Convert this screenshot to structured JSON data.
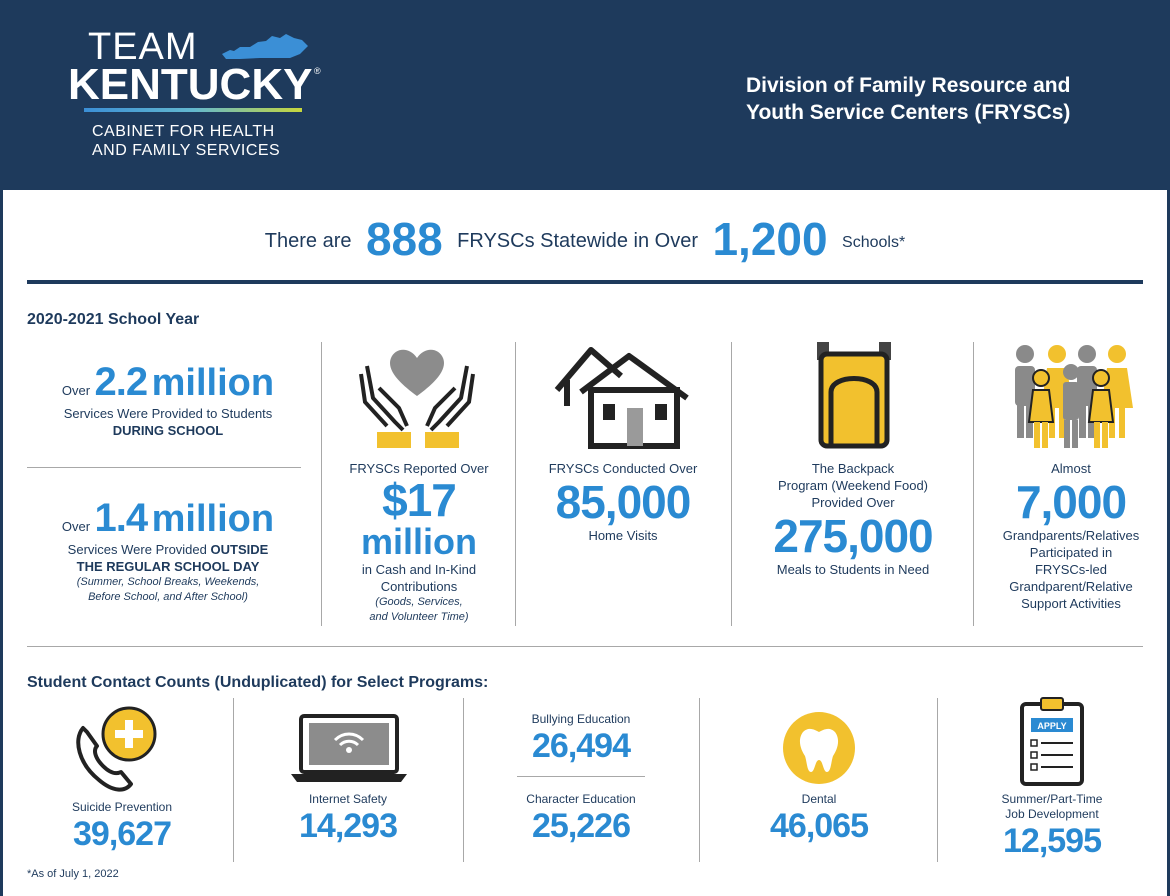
{
  "header": {
    "logo_team": "TEAM",
    "logo_kentucky": "KENTUCKY",
    "logo_reg": "®",
    "cabinet_line1": "CABINET FOR HEALTH",
    "cabinet_line2": "AND FAMILY SERVICES",
    "division_line1": "Division of Family Resource and",
    "division_line2": "Youth Service Centers (FRYSCs)"
  },
  "headline": {
    "pre": "There are",
    "frysc_count": "888",
    "mid": "FRYSCs Statewide in Over",
    "school_count": "1,200",
    "post": "Schools*"
  },
  "school_year": {
    "title": "2020-2021 School Year",
    "during": {
      "over": "Over",
      "value": "2.2",
      "unit": "million",
      "line1": "Services Were Provided to Students",
      "line2": "DURING SCHOOL"
    },
    "outside": {
      "over": "Over",
      "value": "1.4",
      "unit": "million",
      "line1_pre": "Services Were Provided",
      "line1_bold": "OUTSIDE",
      "line2": "THE REGULAR SCHOOL DAY",
      "note1": "(Summer, School Breaks, Weekends,",
      "note2": "Before School, and After School)"
    },
    "contributions": {
      "label": "FRYSCs Reported Over",
      "value": "$17",
      "unit": "million",
      "line1": "in Cash and In-Kind",
      "line2": "Contributions",
      "note1": "(Goods, Services,",
      "note2": "and Volunteer Time)",
      "icon": "heart-hands-icon"
    },
    "home_visits": {
      "label": "FRYSCs Conducted Over",
      "value": "85,000",
      "caption": "Home Visits",
      "icon": "houses-icon"
    },
    "backpack": {
      "line1": "The Backpack",
      "line2": "Program (Weekend Food)",
      "line3": "Provided Over",
      "value": "275,000",
      "caption": "Meals to Students in Need",
      "icon": "backpack-icon"
    },
    "grandparents": {
      "label": "Almost",
      "value": "7,000",
      "line1": "Grandparents/Relatives",
      "line2": "Participated in",
      "line3": "FRYSCs-led",
      "line4": "Grandparent/Relative",
      "line5": "Support Activities",
      "icon": "family-icon"
    }
  },
  "contacts": {
    "title": "Student Contact Counts (Unduplicated) for Select Programs:",
    "suicide": {
      "label": "Suicide Prevention",
      "value": "39,627",
      "icon": "phone-plus-icon"
    },
    "internet": {
      "label": "Internet Safety",
      "value": "14,293",
      "icon": "laptop-wifi-icon"
    },
    "bullying": {
      "label": "Bullying Education",
      "value": "26,494"
    },
    "character": {
      "label": "Character Education",
      "value": "25,226"
    },
    "dental": {
      "label": "Dental",
      "value": "46,065",
      "icon": "tooth-icon"
    },
    "jobs": {
      "label1": "Summer/Part-Time",
      "label2": "Job Development",
      "value": "12,595",
      "icon": "clipboard-apply-icon",
      "clip_text": "APPLY"
    }
  },
  "footnote": "*As of July 1, 2022",
  "colors": {
    "navy": "#1e3a5c",
    "blue": "#2a8ad2",
    "yellow": "#f2c12e",
    "gray": "#8a8a8a"
  }
}
